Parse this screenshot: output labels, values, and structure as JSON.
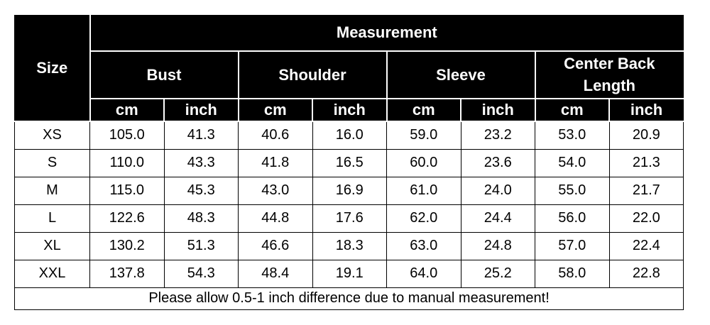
{
  "header": {
    "size": "Size",
    "measurement": "Measurement",
    "groups": [
      "Bust",
      "Shoulder",
      "Sleeve",
      "Center Back Length"
    ],
    "units": [
      "cm",
      "inch",
      "cm",
      "inch",
      "cm",
      "inch",
      "cm",
      "inch"
    ]
  },
  "table": {
    "rows": [
      [
        "XS",
        "105.0",
        "41.3",
        "40.6",
        "16.0",
        "59.0",
        "23.2",
        "53.0",
        "20.9"
      ],
      [
        "S",
        "110.0",
        "43.3",
        "41.8",
        "16.5",
        "60.0",
        "23.6",
        "54.0",
        "21.3"
      ],
      [
        "M",
        "115.0",
        "45.3",
        "43.0",
        "16.9",
        "61.0",
        "24.0",
        "55.0",
        "21.7"
      ],
      [
        "L",
        "122.6",
        "48.3",
        "44.8",
        "17.6",
        "62.0",
        "24.4",
        "56.0",
        "22.0"
      ],
      [
        "XL",
        "130.2",
        "51.3",
        "46.6",
        "18.3",
        "63.0",
        "24.8",
        "57.0",
        "22.4"
      ],
      [
        "XXL",
        "137.8",
        "54.3",
        "48.4",
        "19.1",
        "64.0",
        "25.2",
        "58.0",
        "22.8"
      ]
    ]
  },
  "footer": {
    "note": "Please allow 0.5-1 inch difference due to manual measurement!"
  }
}
